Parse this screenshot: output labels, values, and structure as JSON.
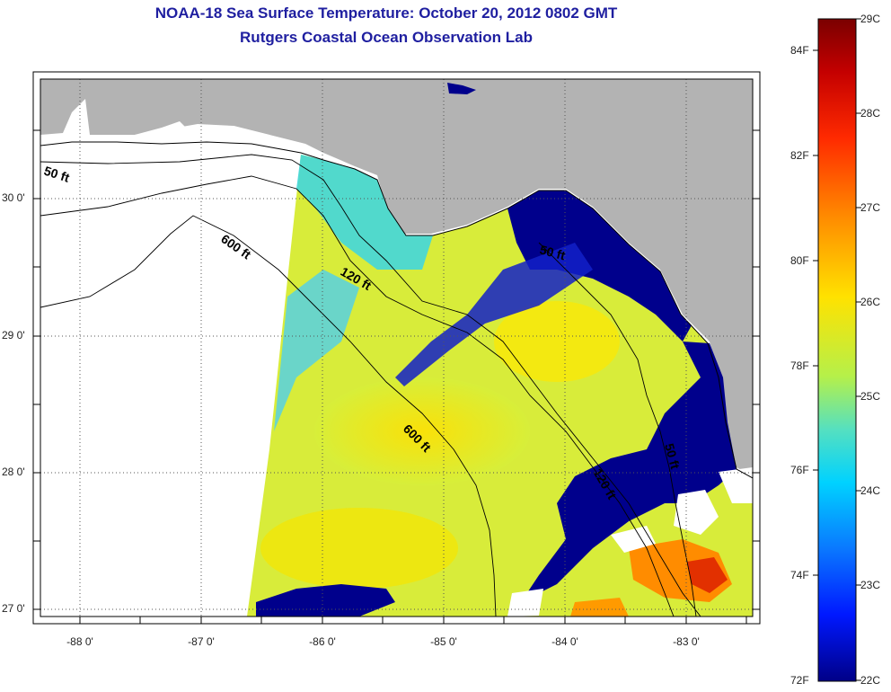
{
  "title": "NOAA-18 Sea Surface Temperature:  October 20, 2012 0802 GMT",
  "subtitle": "Rutgers Coastal Ocean Observation Lab",
  "map": {
    "lat_ticks": [
      "30 0'",
      "29 0'",
      "28 0'",
      "27 0'"
    ],
    "lon_ticks": [
      "-88 0'",
      "-87 0'",
      "-86 0'",
      "-85 0'",
      "-84 0'",
      "-83 0'"
    ],
    "contours": [
      "50 ft",
      "120 ft",
      "600 ft",
      "600 ft",
      "50 ft",
      "120 ft",
      "50 ft"
    ],
    "colors": {
      "land": "#b3b3b3",
      "no_data": "#ffffff",
      "cold": "#00008c",
      "warm": "#ffee00"
    }
  },
  "colorbar": {
    "fahrenheit": [
      "84F",
      "82F",
      "80F",
      "78F",
      "76F",
      "74F",
      "72F"
    ],
    "celsius": [
      "29C",
      "28C",
      "27C",
      "26C",
      "25C",
      "24C",
      "23C",
      "22C"
    ]
  }
}
